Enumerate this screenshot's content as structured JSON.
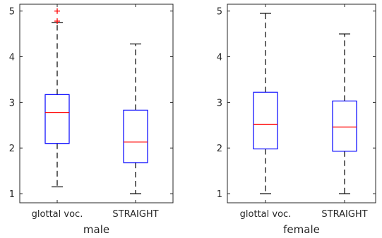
{
  "chart_data": [
    {
      "type": "box",
      "xlabel": "male",
      "categories": [
        "glottal voc.",
        "STRAIGHT"
      ],
      "ylim": [
        0.8,
        5.15
      ],
      "yticks": [
        1,
        2,
        3,
        4,
        5
      ],
      "grid": false,
      "colors": {
        "box": "#0000ff",
        "median": "#ff0000",
        "whisker": "#000000",
        "outlier": "#ff0000",
        "axis": "#262626"
      },
      "boxes": [
        {
          "category": "glottal voc.",
          "whisker_low": 1.15,
          "q1": 2.1,
          "median": 2.78,
          "q3": 3.17,
          "whisker_high": 4.75,
          "outliers": [
            4.78,
            5.0
          ]
        },
        {
          "category": "STRAIGHT",
          "whisker_low": 1.0,
          "q1": 1.68,
          "median": 2.13,
          "q3": 2.83,
          "whisker_high": 4.28,
          "outliers": []
        }
      ]
    },
    {
      "type": "box",
      "xlabel": "female",
      "categories": [
        "glottal voc.",
        "STRAIGHT"
      ],
      "ylim": [
        0.8,
        5.15
      ],
      "yticks": [
        1,
        2,
        3,
        4,
        5
      ],
      "grid": false,
      "colors": {
        "box": "#0000ff",
        "median": "#ff0000",
        "whisker": "#000000",
        "outlier": "#ff0000",
        "axis": "#262626"
      },
      "boxes": [
        {
          "category": "glottal voc.",
          "whisker_low": 1.0,
          "q1": 1.98,
          "median": 2.52,
          "q3": 3.22,
          "whisker_high": 4.95,
          "outliers": []
        },
        {
          "category": "STRAIGHT",
          "whisker_low": 1.0,
          "q1": 1.93,
          "median": 2.46,
          "q3": 3.03,
          "whisker_high": 4.5,
          "outliers": []
        }
      ]
    }
  ]
}
